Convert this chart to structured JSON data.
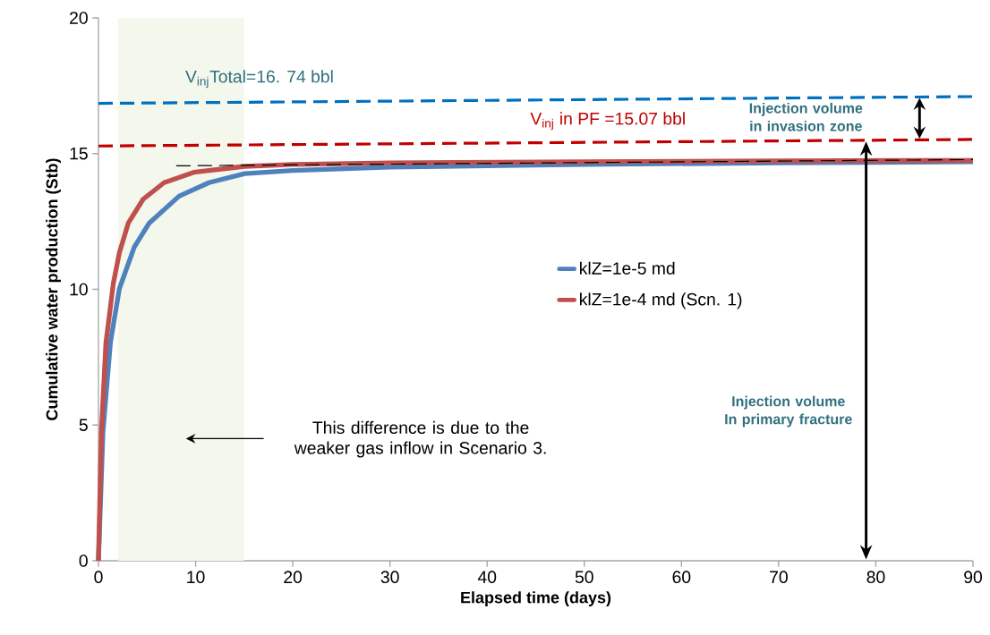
{
  "chart_data": {
    "type": "line",
    "xlabel": "Elapsed time (days)",
    "ylabel": "Cumulative water production (Stb)",
    "xlim": [
      0,
      90
    ],
    "ylim": [
      0,
      20
    ],
    "xticks": [
      0,
      10,
      20,
      30,
      40,
      50,
      60,
      70,
      80,
      90
    ],
    "yticks": [
      0,
      5,
      10,
      15,
      20
    ],
    "grid": false,
    "legend": "right",
    "marker": "none",
    "series": [
      {
        "name": "klZ=1e-5 md",
        "color": "#4f81bd",
        "x": [
          0,
          0.46,
          1.23,
          2.15,
          3.69,
          5.22,
          8.29,
          11.36,
          15.05,
          20,
          30,
          50,
          70,
          90
        ],
        "values": [
          0,
          4.74,
          8.04,
          10.02,
          11.56,
          12.44,
          13.43,
          13.93,
          14.26,
          14.38,
          14.5,
          14.6,
          14.66,
          14.7
        ]
      },
      {
        "name": "klZ=1e-4 md (Scn. 1)",
        "color": "#c0504d",
        "x": [
          0,
          0.3,
          0.77,
          1.54,
          2.15,
          3.07,
          4.6,
          6.75,
          9.8,
          15.05,
          20,
          30,
          50,
          70,
          90
        ],
        "values": [
          0,
          4.74,
          8.04,
          10.24,
          11.34,
          12.44,
          13.32,
          13.93,
          14.31,
          14.53,
          14.6,
          14.66,
          14.7,
          14.73,
          14.75
        ]
      },
      {
        "color": "#0070c0",
        "line_style": "dashed",
        "x": [
          0,
          90
        ],
        "values": [
          16.85,
          17.1
        ]
      },
      {
        "color": "#c00000",
        "line_style": "dashed",
        "x": [
          0,
          90
        ],
        "values": [
          15.28,
          15.52
        ]
      },
      {
        "color": "#000000",
        "line_style": "dashed",
        "x": [
          8,
          90
        ],
        "values": [
          14.55,
          14.78
        ]
      }
    ],
    "bands": [
      {
        "axis": "x",
        "from": 2,
        "to": 15,
        "color": "#f3f7ec"
      }
    ],
    "annotations": [
      "V$_{inj}$Total=16. 74 bbl",
      "V$_{inj}$ in PF =15.07 bbl",
      "Injection volume in invasion zone",
      "Injection volume In primary fracture",
      "This difference is due to the weaker gas inflow in Scenario 3."
    ]
  }
}
